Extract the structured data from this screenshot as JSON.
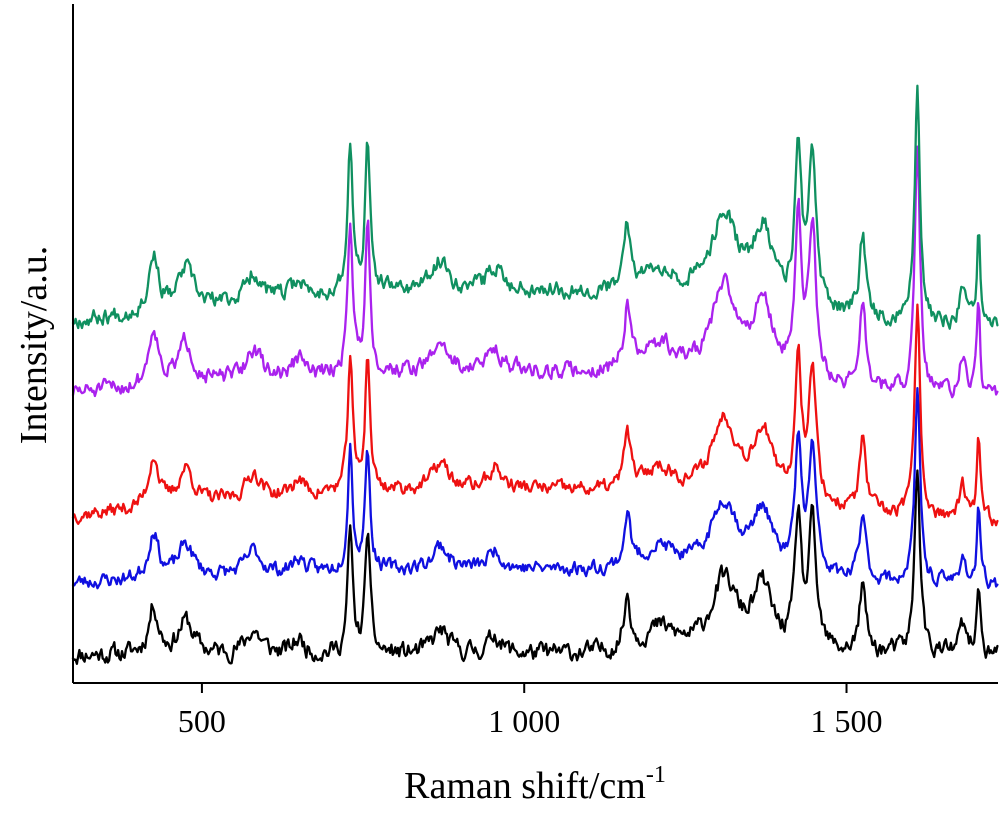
{
  "chart_data": {
    "type": "line",
    "xlabel": "Raman shift/cm",
    "xlabel_superscript": "-1",
    "ylabel": "Intensity/a.u.",
    "xlim": [
      300,
      1735
    ],
    "x_ticks": [
      {
        "value": 500,
        "label": "500"
      },
      {
        "value": 1000,
        "label": "1 000"
      },
      {
        "value": 1500,
        "label": "1 500"
      }
    ],
    "y_ticks_shown": false,
    "grid": false,
    "legend": "none",
    "peaks": [
      {
        "x": 300,
        "w": 0,
        "h": 0
      },
      {
        "x": 425,
        "w": 9,
        "h": 0.5
      },
      {
        "x": 475,
        "w": 14,
        "h": 0.35
      },
      {
        "x": 580,
        "w": 14,
        "h": 0.25
      },
      {
        "x": 650,
        "w": 10,
        "h": 0.15
      },
      {
        "x": 730,
        "w": 4.5,
        "h": 1.3
      },
      {
        "x": 757,
        "w": 4.5,
        "h": 1.3
      },
      {
        "x": 870,
        "w": 14,
        "h": 0.25
      },
      {
        "x": 955,
        "w": 12,
        "h": 0.2
      },
      {
        "x": 1160,
        "w": 6,
        "h": 0.55
      },
      {
        "x": 1210,
        "w": 30,
        "h": 0.25
      },
      {
        "x": 1310,
        "w": 25,
        "h": 0.75
      },
      {
        "x": 1370,
        "w": 18,
        "h": 0.65
      },
      {
        "x": 1425,
        "w": 6,
        "h": 1.35
      },
      {
        "x": 1447,
        "w": 7,
        "h": 1.3
      },
      {
        "x": 1525,
        "w": 6,
        "h": 0.7
      },
      {
        "x": 1610,
        "w": 5,
        "h": 2.0
      },
      {
        "x": 1680,
        "w": 6,
        "h": 0.3
      },
      {
        "x": 1705,
        "w": 3,
        "h": 0.8
      }
    ],
    "series": [
      {
        "color": "#000000",
        "baseline": 0.0,
        "tilt": 0.0,
        "scale": 1.0,
        "noise": 0.09,
        "seed": 11
      },
      {
        "color": "#1010e0",
        "baseline": 0.75,
        "tilt": 0.25,
        "scale": 1.0,
        "noise": 0.07,
        "seed": 23
      },
      {
        "color": "#ee1111",
        "baseline": 1.45,
        "tilt": 0.5,
        "scale": 1.1,
        "noise": 0.07,
        "seed": 37
      },
      {
        "color": "#aa22ee",
        "baseline": 2.75,
        "tilt": 0.4,
        "scale": 1.25,
        "noise": 0.08,
        "seed": 51
      },
      {
        "color": "#109060",
        "baseline": 3.5,
        "tilt": 0.6,
        "scale": 1.2,
        "noise": 0.08,
        "seed": 67
      }
    ]
  }
}
